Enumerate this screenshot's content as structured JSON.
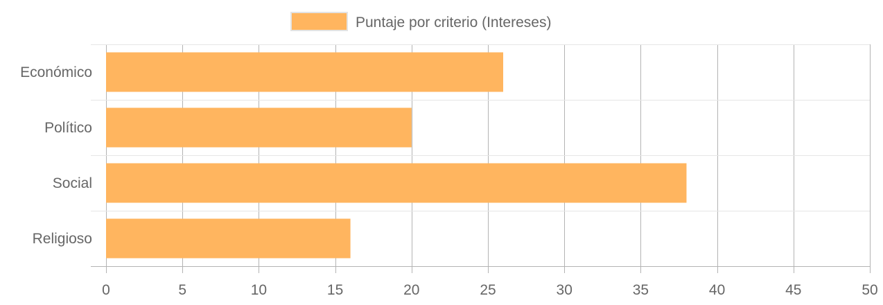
{
  "chart_data": {
    "type": "bar",
    "orientation": "horizontal",
    "categories": [
      "Económico",
      "Político",
      "Social",
      "Religioso"
    ],
    "series": [
      {
        "name": "Puntaje por criterio (Intereses)",
        "values": [
          26,
          20,
          38,
          16
        ]
      }
    ],
    "xlim": [
      0,
      50
    ],
    "x_ticks": [
      0,
      5,
      10,
      15,
      20,
      25,
      30,
      35,
      40,
      45,
      50
    ],
    "x_tick_labels": [
      "0",
      "5",
      "10",
      "15",
      "20",
      "25",
      "30",
      "35",
      "40",
      "45",
      "50"
    ],
    "grid": true,
    "legend_position": "top",
    "colors": {
      "bar_fill": "#ffb55f",
      "grid": "#e6e6e6",
      "grid_vertical": "#b3b3b3",
      "text": "#666666"
    }
  }
}
